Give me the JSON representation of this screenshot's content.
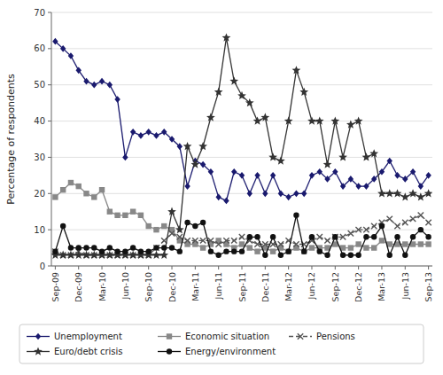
{
  "chart_data": {
    "type": "line",
    "y_label": "Percentage of respondents",
    "categories": [
      "Sep-09",
      null,
      null,
      "Dec-09",
      null,
      null,
      "Mar-10",
      null,
      null,
      "Jun-10",
      null,
      null,
      "Sep-10",
      null,
      null,
      "Dec-10",
      null,
      null,
      "Mar-11",
      null,
      null,
      "Jun-11",
      null,
      null,
      "Sep-11",
      null,
      null,
      "Dec-11",
      null,
      null,
      "Mar-12",
      null,
      null,
      "Jun-12",
      null,
      null,
      "Sep-12",
      null,
      null,
      "Dec-12",
      null,
      null,
      "Mar-13",
      null,
      null,
      "Jun-13",
      null,
      null,
      "Sep-13"
    ],
    "ylim": [
      0,
      70
    ],
    "yticks": [
      0,
      10,
      20,
      30,
      40,
      50,
      60,
      70
    ],
    "grid": true,
    "legend": "bottom",
    "series": [
      {
        "name": "Unemployment",
        "color": "#1a1a6e",
        "marker": "diamond",
        "line_style": "solid",
        "values": [
          62,
          60,
          58,
          54,
          51,
          50,
          51,
          50,
          46,
          30,
          37,
          36,
          37,
          36,
          37,
          35,
          33,
          22,
          29,
          28,
          26,
          19,
          18,
          26,
          25,
          20,
          25,
          20,
          25,
          20,
          19,
          20,
          20,
          25,
          26,
          24,
          26,
          22,
          24,
          22,
          22,
          24,
          26,
          29,
          25,
          24,
          26,
          22,
          25
        ]
      },
      {
        "name": "Economic situation",
        "color": "#888888",
        "marker": "square",
        "line_style": "solid",
        "values": [
          19,
          21,
          23,
          22,
          20,
          19,
          21,
          15,
          14,
          14,
          15,
          14,
          11,
          10,
          11,
          10,
          7,
          6,
          6,
          5,
          6,
          7,
          6,
          5,
          6,
          5,
          4,
          5,
          4,
          5,
          4,
          5,
          4,
          5,
          5,
          5,
          6,
          5,
          5,
          6,
          5,
          5,
          7,
          6,
          6,
          6,
          6,
          6,
          6
        ]
      },
      {
        "name": "Pensions",
        "color": "#555555",
        "marker": "x",
        "line_style": "dashed",
        "values": [
          4,
          3,
          3,
          4,
          3,
          3,
          3,
          3,
          3,
          3,
          3,
          3,
          3,
          5,
          7,
          9,
          8,
          7,
          7,
          7,
          7,
          6,
          7,
          7,
          8,
          7,
          6,
          6,
          6,
          6,
          7,
          6,
          6,
          7,
          8,
          7,
          8,
          8,
          9,
          10,
          10,
          11,
          12,
          13,
          11,
          12,
          13,
          14,
          12
        ]
      },
      {
        "name": "Euro/debt crisis",
        "color": "#333333",
        "marker": "star",
        "line_style": "solid",
        "values": [
          3,
          3,
          3,
          3,
          3,
          3,
          3,
          3,
          3,
          3,
          3,
          3,
          3,
          3,
          3,
          15,
          10,
          33,
          28,
          33,
          41,
          48,
          63,
          51,
          47,
          45,
          40,
          41,
          30,
          29,
          40,
          54,
          48,
          40,
          40,
          28,
          40,
          30,
          39,
          40,
          30,
          31,
          20,
          20,
          20,
          19,
          20,
          19,
          20
        ]
      },
      {
        "name": "Energy/environment",
        "color": "#111111",
        "marker": "circle",
        "line_style": "solid",
        "values": [
          4,
          11,
          5,
          5,
          5,
          5,
          4,
          5,
          4,
          4,
          5,
          4,
          4,
          5,
          5,
          5,
          4,
          12,
          11,
          12,
          4,
          3,
          4,
          4,
          4,
          8,
          8,
          3,
          8,
          3,
          4,
          14,
          4,
          8,
          4,
          3,
          8,
          3,
          3,
          3,
          8,
          8,
          11,
          3,
          8,
          3,
          8,
          10,
          8
        ]
      }
    ]
  }
}
